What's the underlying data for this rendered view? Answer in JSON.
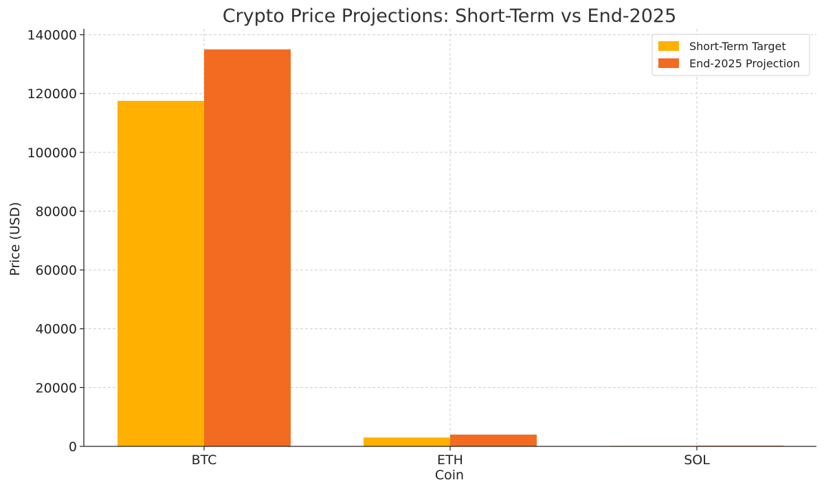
{
  "chart_data": {
    "type": "bar",
    "title": "Crypto Price Projections: Short-Term vs End-2025",
    "xlabel": "Coin",
    "ylabel": "Price (USD)",
    "categories": [
      "BTC",
      "ETH",
      "SOL"
    ],
    "series": [
      {
        "name": "Short-Term Target",
        "values": [
          117500,
          3000,
          170
        ],
        "color": "#FFB000"
      },
      {
        "name": "End-2025 Projection",
        "values": [
          135000,
          4000,
          250
        ],
        "color": "#F26B21"
      }
    ],
    "ylim": [
      0,
      142000
    ],
    "yticks": [
      0,
      20000,
      40000,
      60000,
      80000,
      100000,
      120000,
      140000
    ],
    "grid": true,
    "legend_position": "top-right"
  }
}
